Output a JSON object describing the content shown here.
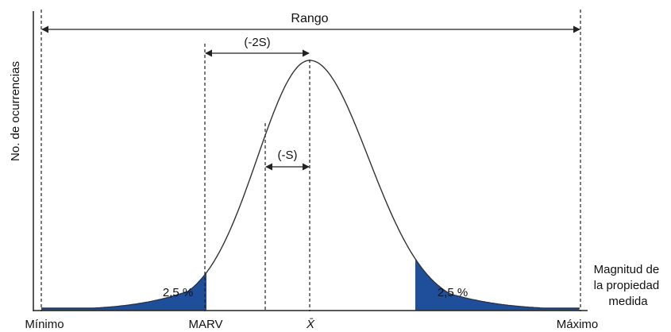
{
  "diagram": {
    "range_label": "Rango",
    "two_s_label": "(-2S)",
    "one_s_label": "(-S)",
    "y_axis_label": "No. de ocurrencias",
    "x_axis_label_lines": [
      "Magnitud de",
      "la propiedad",
      "medida"
    ],
    "left_tail_percent": "2,5 %",
    "right_tail_percent": "2,5 %",
    "x_ticks": {
      "minimum": "Mínimo",
      "marv": "MARV",
      "mean": "X̄",
      "maximum": "Máximo"
    },
    "colors": {
      "tail_fill": "#1f4e9a",
      "curve": "#333333",
      "axis": "#222222"
    }
  }
}
